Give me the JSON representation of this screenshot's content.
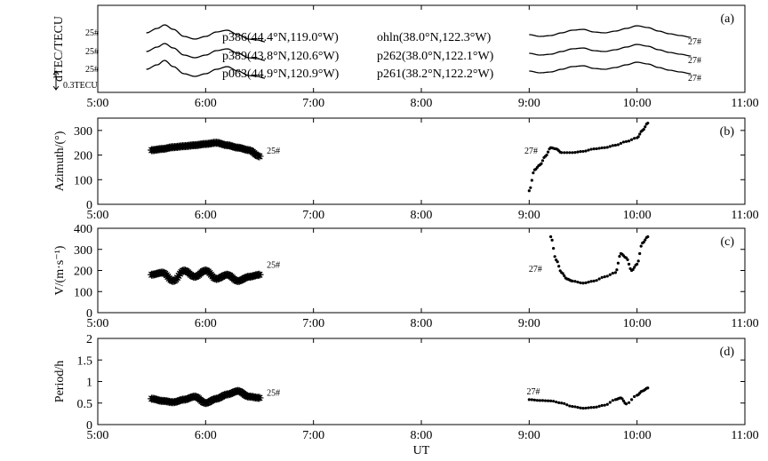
{
  "figure": {
    "xlabel": "UT",
    "x_ticks": [
      "5:00",
      "6:00",
      "7:00",
      "8:00",
      "9:00",
      "10:00",
      "11:00"
    ]
  },
  "chart_data": [
    {
      "id": "a",
      "type": "line",
      "panel_label": "(a)",
      "ylabel": "dTEC/TECU",
      "xlim": [
        5.0,
        11.0
      ],
      "scale_bar_label": "0.3TECU",
      "scale_bar_tecu": 0.3,
      "series": [
        {
          "name": "p386(44.4°N,119.0°W)",
          "tag": "25#",
          "group": "25#",
          "row": 0,
          "x": [
            5.45,
            5.55,
            5.62,
            5.7,
            5.8,
            5.9,
            6.0,
            6.1,
            6.2,
            6.3,
            6.4,
            6.48,
            6.55
          ],
          "y": [
            0.0,
            0.05,
            0.09,
            0.04,
            -0.04,
            -0.07,
            -0.04,
            0.01,
            0.03,
            -0.02,
            -0.07,
            -0.08,
            -0.1
          ]
        },
        {
          "name": "p389(43.8°N,120.6°W)",
          "tag": "25#",
          "group": "25#",
          "row": 1,
          "x": [
            5.45,
            5.55,
            5.62,
            5.7,
            5.8,
            5.9,
            6.0,
            6.1,
            6.2,
            6.3,
            6.4,
            6.48,
            6.55
          ],
          "y": [
            0.0,
            0.05,
            0.09,
            0.04,
            -0.04,
            -0.07,
            -0.04,
            0.01,
            0.03,
            -0.02,
            -0.07,
            -0.08,
            -0.1
          ]
        },
        {
          "name": "p063(44.9°N,120.9°W)",
          "tag": "25#",
          "group": "25#",
          "row": 2,
          "x": [
            5.45,
            5.55,
            5.62,
            5.7,
            5.8,
            5.9,
            6.0,
            6.1,
            6.2,
            6.3,
            6.4,
            6.48,
            6.55
          ],
          "y": [
            0.0,
            0.05,
            0.1,
            0.03,
            -0.05,
            -0.08,
            -0.05,
            0.0,
            0.03,
            -0.02,
            -0.07,
            -0.08,
            -0.1
          ]
        },
        {
          "name": "ohln(38.0°N,122.3°W)",
          "tag": "27#",
          "group": "27#",
          "row": 0,
          "x": [
            9.0,
            9.1,
            9.2,
            9.3,
            9.4,
            9.5,
            9.6,
            9.7,
            9.8,
            9.9,
            10.0,
            10.1,
            10.2,
            10.3,
            10.4,
            10.5
          ],
          "y": [
            -0.02,
            -0.04,
            -0.03,
            0.0,
            0.03,
            0.04,
            0.01,
            0.0,
            0.02,
            0.05,
            0.08,
            0.06,
            0.02,
            -0.01,
            -0.03,
            -0.05
          ]
        },
        {
          "name": "p262(38.0°N,122.1°W)",
          "tag": "27#",
          "group": "27#",
          "row": 1,
          "x": [
            9.0,
            9.1,
            9.2,
            9.3,
            9.4,
            9.5,
            9.6,
            9.7,
            9.8,
            9.9,
            10.0,
            10.1,
            10.2,
            10.3,
            10.4,
            10.5
          ],
          "y": [
            -0.02,
            -0.04,
            -0.03,
            0.0,
            0.03,
            0.04,
            0.01,
            0.0,
            0.02,
            0.05,
            0.08,
            0.06,
            0.02,
            -0.01,
            -0.03,
            -0.05
          ]
        },
        {
          "name": "p261(38.2°N,122.2°W)",
          "tag": "27#",
          "group": "27#",
          "row": 2,
          "x": [
            9.0,
            9.1,
            9.2,
            9.3,
            9.4,
            9.5,
            9.6,
            9.7,
            9.8,
            9.9,
            10.0,
            10.1,
            10.2,
            10.3,
            10.4,
            10.5
          ],
          "y": [
            -0.02,
            -0.04,
            -0.03,
            0.0,
            0.03,
            0.04,
            0.01,
            0.0,
            0.02,
            0.05,
            0.08,
            0.06,
            0.02,
            -0.01,
            -0.03,
            -0.05
          ]
        }
      ]
    },
    {
      "id": "b",
      "type": "scatter",
      "panel_label": "(b)",
      "ylabel": "Azimuth/(°)",
      "xlim": [
        5.0,
        11.0
      ],
      "ylim": [
        0,
        350
      ],
      "yticks": [
        0,
        100,
        200,
        300
      ],
      "series": [
        {
          "name": "25#",
          "marker": "star",
          "x": [
            5.5,
            5.6,
            5.7,
            5.8,
            5.9,
            6.0,
            6.1,
            6.2,
            6.3,
            6.4,
            6.5
          ],
          "y": [
            220,
            225,
            232,
            236,
            240,
            245,
            250,
            240,
            230,
            220,
            195
          ]
        },
        {
          "name": "27#",
          "marker": "dot",
          "x": [
            9.0,
            9.05,
            9.1,
            9.15,
            9.2,
            9.25,
            9.3,
            9.4,
            9.5,
            9.6,
            9.7,
            9.8,
            9.9,
            10.0,
            10.05,
            10.1
          ],
          "y": [
            55,
            140,
            160,
            195,
            230,
            225,
            210,
            210,
            215,
            225,
            230,
            240,
            255,
            270,
            300,
            330
          ]
        }
      ]
    },
    {
      "id": "c",
      "type": "scatter",
      "panel_label": "(c)",
      "ylabel": "V/(m·s⁻¹)",
      "xlim": [
        5.0,
        11.0
      ],
      "ylim": [
        0,
        400
      ],
      "yticks": [
        0,
        100,
        200,
        300,
        400
      ],
      "series": [
        {
          "name": "25#",
          "marker": "star",
          "x": [
            5.5,
            5.6,
            5.7,
            5.8,
            5.9,
            6.0,
            6.1,
            6.2,
            6.3,
            6.4,
            6.5
          ],
          "y": [
            180,
            190,
            150,
            200,
            170,
            200,
            160,
            180,
            150,
            170,
            180
          ]
        },
        {
          "name": "27#",
          "marker": "dot",
          "x": [
            9.2,
            9.25,
            9.3,
            9.35,
            9.4,
            9.5,
            9.6,
            9.7,
            9.8,
            9.85,
            9.9,
            9.95,
            10.0,
            10.05,
            10.1
          ],
          "y": [
            360,
            250,
            190,
            160,
            150,
            140,
            150,
            170,
            190,
            280,
            260,
            200,
            230,
            330,
            360
          ]
        }
      ]
    },
    {
      "id": "d",
      "type": "scatter",
      "panel_label": "(d)",
      "ylabel": "Period/h",
      "xlim": [
        5.0,
        11.0
      ],
      "ylim": [
        0,
        2
      ],
      "yticks": [
        0,
        0.5,
        1,
        1.5,
        2
      ],
      "ytick_labels": [
        "0",
        "0.5",
        "1",
        "1.5",
        "2"
      ],
      "series": [
        {
          "name": "25#",
          "marker": "star",
          "x": [
            5.5,
            5.6,
            5.7,
            5.8,
            5.9,
            6.0,
            6.1,
            6.2,
            6.3,
            6.4,
            6.5
          ],
          "y": [
            0.6,
            0.55,
            0.52,
            0.58,
            0.65,
            0.5,
            0.6,
            0.7,
            0.78,
            0.65,
            0.62
          ]
        },
        {
          "name": "27#",
          "marker": "dot",
          "x": [
            9.0,
            9.1,
            9.2,
            9.3,
            9.4,
            9.5,
            9.6,
            9.7,
            9.8,
            9.85,
            9.9,
            10.0,
            10.05,
            10.1
          ],
          "y": [
            0.58,
            0.56,
            0.55,
            0.5,
            0.42,
            0.38,
            0.4,
            0.45,
            0.58,
            0.62,
            0.48,
            0.68,
            0.78,
            0.85
          ]
        }
      ]
    }
  ]
}
